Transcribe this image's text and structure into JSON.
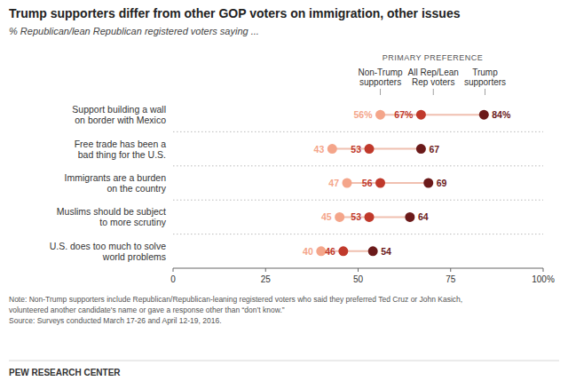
{
  "chart_data": {
    "type": "dot",
    "title": "Trump supporters differ from other GOP voters on immigration, other issues",
    "subtitle": "% Republican/lean Republican registered voters saying ...",
    "legend_title": "PRIMARY PREFERENCE",
    "categories": [
      "Support building a wall\non border with Mexico",
      "Free trade has been a\nbad thing for the U.S.",
      "Immigrants are a burden\non the country",
      "Muslims should be subject\nto more scrutiny",
      "U.S. does too much to solve\nworld problems"
    ],
    "series": [
      {
        "name": "Non-Trump\nsupporters",
        "color": "#f4a58a",
        "values": [
          56,
          43,
          47,
          45,
          40
        ],
        "value_labels": [
          "56%",
          "43",
          "47",
          "45",
          "40"
        ]
      },
      {
        "name": "All Rep/Lean\nRep voters",
        "color": "#c0392b",
        "values": [
          67,
          53,
          56,
          53,
          46
        ],
        "value_labels": [
          "67%",
          "53",
          "56",
          "53",
          "46"
        ]
      },
      {
        "name": "Trump\nsupporters",
        "color": "#6b1a1a",
        "values": [
          84,
          67,
          69,
          64,
          54
        ],
        "value_labels": [
          "84%",
          "67",
          "69",
          "64",
          "54"
        ]
      }
    ],
    "xlim": [
      0,
      100
    ],
    "xticks": [
      0,
      25,
      50,
      75,
      {
        "value": 100,
        "label": "100%"
      }
    ],
    "grid": false,
    "legend": "top",
    "data_labels": true,
    "notes": [
      "Note: Non-Trump supporters include Republican/Republican-leaning registered voters who said they preferred Ted Cruz or John Kasich,",
      "volunteered another candidate's name or gave a response other than “don’t know.”",
      "Source: Surveys conducted March 17-26 and April 12-19, 2016."
    ],
    "source": "PEW RESEARCH CENTER"
  }
}
